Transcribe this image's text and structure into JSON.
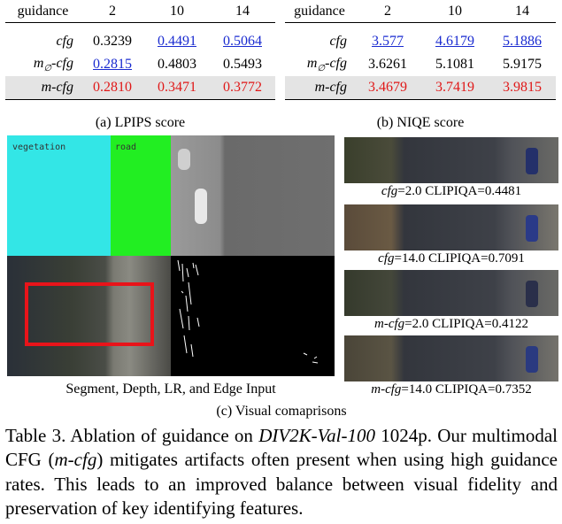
{
  "tables": [
    {
      "header": [
        "guidance",
        "2",
        "10",
        "14"
      ],
      "rows": [
        {
          "label": "cfg",
          "values": [
            "0.3239",
            "0.4491",
            "0.5064"
          ],
          "style": [
            "plain",
            "blue",
            "blue"
          ]
        },
        {
          "label": "m∅-cfg",
          "values": [
            "0.2815",
            "0.4803",
            "0.5493"
          ],
          "style": [
            "blue",
            "plain",
            "plain"
          ]
        },
        {
          "label": "m-cfg",
          "values": [
            "0.2810",
            "0.3471",
            "0.3772"
          ],
          "style": [
            "red",
            "red",
            "red"
          ]
        }
      ],
      "caption": "(a) LPIPS score"
    },
    {
      "header": [
        "guidance",
        "2",
        "10",
        "14"
      ],
      "rows": [
        {
          "label": "cfg",
          "values": [
            "3.577",
            "4.6179",
            "5.1886"
          ],
          "style": [
            "blue",
            "blue",
            "blue"
          ]
        },
        {
          "label": "m∅-cfg",
          "values": [
            "3.6261",
            "5.1081",
            "5.9175"
          ],
          "style": [
            "plain",
            "plain",
            "plain"
          ]
        },
        {
          "label": "m-cfg",
          "values": [
            "3.4679",
            "3.7419",
            "3.9815"
          ],
          "style": [
            "red",
            "red",
            "red"
          ]
        }
      ],
      "caption": "(b) NIQE score"
    }
  ],
  "input_panel": {
    "segment_labels": [
      "vegetation",
      "road"
    ],
    "caption": "Segment, Depth, LR, and Edge Input"
  },
  "comparisons": [
    {
      "label": "cfg=2.0 CLIPIQA=0.4481"
    },
    {
      "label": "cfg=14.0 CLIPIQA=0.7091"
    },
    {
      "label": "m-cfg=2.0 CLIPIQA=0.4122"
    },
    {
      "label": "m-cfg=14.0 CLIPIQA=0.7352"
    }
  ],
  "visual_caption": "(c) Visual comaprisons",
  "table_caption": {
    "prefix": "Table 3.  Ablation of guidance on ",
    "dataset": "DIV2K-Val-100",
    "mid1": " 1024p.  Our multimodal CFG (",
    "method": "m-cfg",
    "rest": ") mitigates artifacts often present when using high guidance rates.  This leads to an improved balance between visual fidelity and preservation of key identifying features."
  },
  "colors": {
    "best": "#e01818",
    "second": "#1a2bd0",
    "highlight_row": "#e4e4e4",
    "segment_vegetation": "#33e6e6",
    "segment_road": "#22ee22",
    "bbox": "#e8141a"
  }
}
